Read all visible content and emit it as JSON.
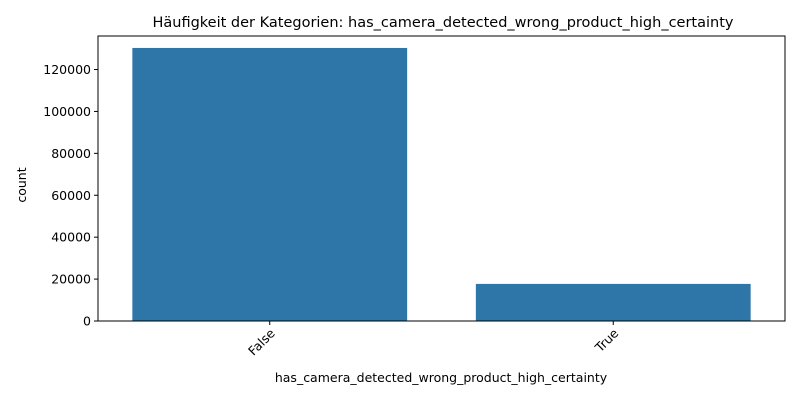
{
  "chart_data": {
    "type": "bar",
    "title": "Häufigkeit der Kategorien: has_camera_detected_wrong_product_high_certainty",
    "xlabel": "has_camera_detected_wrong_product_high_certainty",
    "ylabel": "count",
    "categories": [
      "False",
      "True"
    ],
    "values": [
      130300,
      17700
    ],
    "ylim": [
      0,
      136000
    ],
    "yticks": [
      0,
      20000,
      40000,
      60000,
      80000,
      100000,
      120000
    ],
    "grid": false,
    "legend": "none",
    "bar_color": "#2f76a8"
  }
}
